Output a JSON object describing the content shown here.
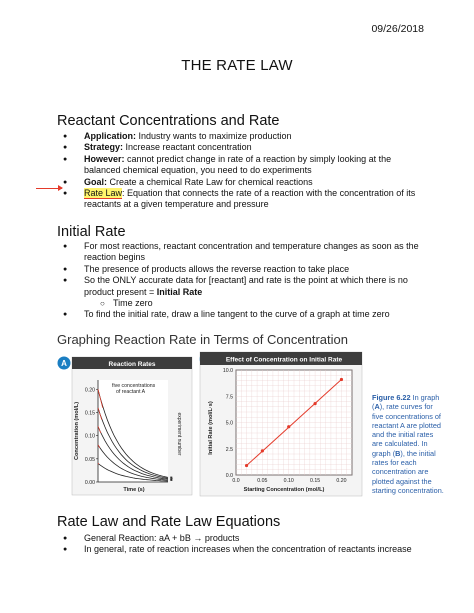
{
  "date": "09/26/2018",
  "title": "THE RATE LAW",
  "section1": {
    "heading": "Reactant Concentrations and Rate",
    "items": [
      {
        "label": "Application:",
        "text": " Industry wants to maximize production"
      },
      {
        "label": "Strategy:",
        "text": " Increase reactant concentration"
      },
      {
        "label": "However:",
        "text": " cannot predict change in rate of a reaction by simply looking at the balanced chemical equation, you need to do experiments"
      },
      {
        "label": "Goal:",
        "text": " Create a chemical Rate Law for chemical reactions"
      },
      {
        "label": "Rate Law",
        "text": ": Equation that connects the rate of a reaction with the concentration of its reactants at a given temperature and pressure"
      }
    ]
  },
  "section2": {
    "heading": "Initial Rate",
    "items": [
      "For most reactions, reactant concentration and temperature changes as soon as the reaction begins",
      "The presence of products allows the reverse reaction to take place",
      "So the ONLY accurate data for [reactant] and rate is the point at which there is no product present = ",
      "Time zero",
      "To find the initial rate, draw a line tangent to the curve of a graph at time zero"
    ],
    "initial_rate_bold": "Initial Rate"
  },
  "section3": {
    "heading": "Graphing Reaction Rate in Terms of Concentration"
  },
  "figure": {
    "panel_a": {
      "badge": "A",
      "title": "Reaction Rates",
      "inset_label_1": "five concentrations",
      "inset_label_2": "of reactant A",
      "ylabel": "Concentration (mol/L)",
      "xlabel": "Time (s)",
      "right_label": "experiment number",
      "yticks": [
        "0.20",
        "0.15",
        "0.10",
        "0.05",
        "0.00"
      ],
      "curve_numbers": [
        "5",
        "4",
        "3",
        "2",
        "1"
      ]
    },
    "panel_b": {
      "badge": "B",
      "title": "Effect of Concentration on Initial Rate",
      "ylabel": "Initial Rate (mol/L·s)",
      "xlabel": "Starting Concentration (mol/L)"
    },
    "caption": {
      "fig_label": "Figure 6.22",
      "parts": [
        " In graph (",
        "A",
        "), rate curves for five concentrations of reactant A are plotted and the initial rates are calculated. In graph (",
        "B",
        "), the initial rates for each concentration are plotted against the starting concentration."
      ]
    },
    "colors": {
      "badge": "#1a7ec2",
      "title_bar_a": "#3d3d3d",
      "title_bar_b": "#3d3d3d",
      "curve": "#222222",
      "tangent": "#e43a2a",
      "line_b": "#e43a2a"
    }
  },
  "chart_data": {
    "type": "scatter",
    "title": "Effect of Concentration on Initial Rate",
    "xlabel": "Starting Concentration (mol/L)",
    "ylabel": "Initial Rate (mol/L·s)",
    "xlim": [
      0,
      0.22
    ],
    "ylim": [
      0,
      10.0
    ],
    "xticks": [
      "0.0",
      "0.05",
      "0.10",
      "0.15",
      "0.20"
    ],
    "yticks": [
      "0.0",
      "2.5",
      "5.0",
      "7.5",
      "10.0"
    ],
    "grid": true,
    "x": [
      0.02,
      0.05,
      0.1,
      0.15,
      0.2
    ],
    "y": [
      0.9,
      2.3,
      4.6,
      6.8,
      9.1
    ]
  },
  "section4": {
    "heading": "Rate Law and Rate Law Equations",
    "items": [
      "General Reaction: aA + bB → products",
      "In general, rate of reaction increases when the concentration of reactants increase"
    ]
  }
}
